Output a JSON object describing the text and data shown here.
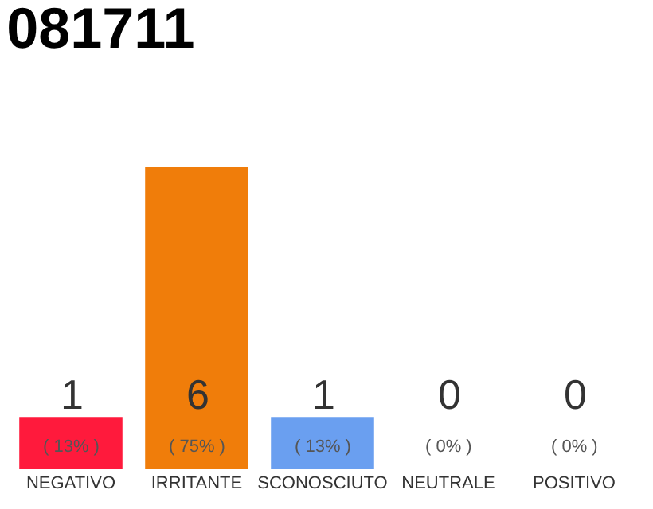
{
  "chart_data": {
    "type": "bar",
    "title": "081711",
    "categories": [
      "NEGATIVO",
      "IRRITANTE",
      "SCONOSCIUTO",
      "NEUTRALE",
      "POSITIVO"
    ],
    "values": [
      13,
      75,
      13,
      0,
      0
    ],
    "colors": [
      "#ff1a3c",
      "#f07d0a",
      "#6a9ff0",
      "#cccccc",
      "#cccccc"
    ],
    "value_labels": [
      "( 13% )",
      "( 75% )",
      "( 13% )",
      "( 0% )",
      "( 0% )"
    ],
    "annotations": [
      "1",
      "6",
      "1",
      "0",
      "0"
    ],
    "grid": false,
    "legend": false
  }
}
